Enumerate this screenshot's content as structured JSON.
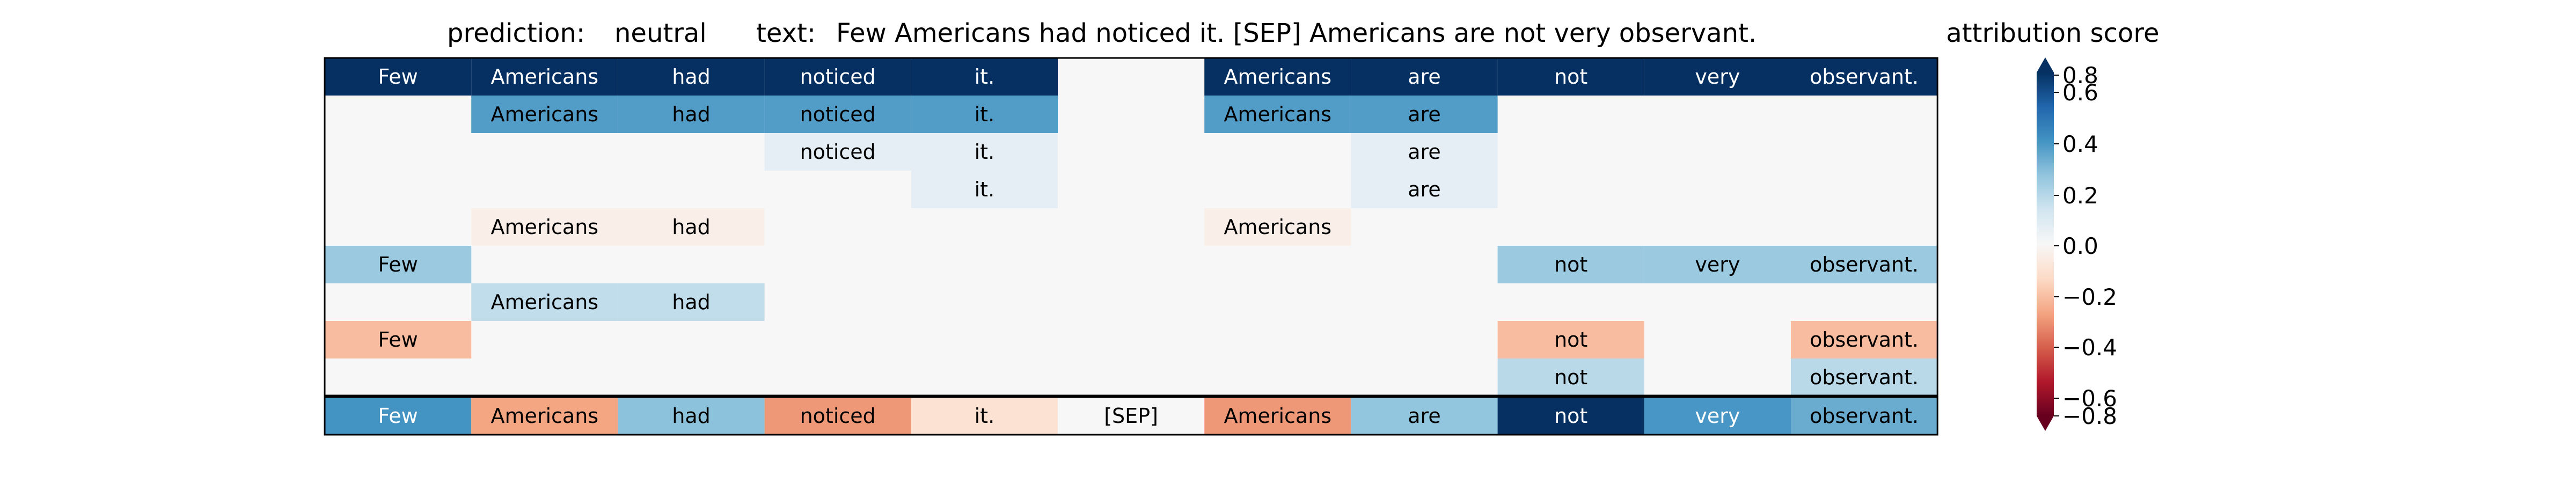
{
  "chart_data": {
    "type": "heatmap",
    "title_prediction_label": "prediction:",
    "title_prediction_value": "neutral",
    "title_text_label": "text:",
    "title_text_value": "Few Americans had noticed it. [SEP] Americans are not very observant.",
    "colorbar_title": "attribution score",
    "colorscale": "RdBu",
    "vmin": -0.8,
    "vmax": 0.8,
    "colorbar_ticks": [
      "0.8",
      "0.6",
      "0.4",
      "0.2",
      "0.0",
      "−0.2",
      "−0.4",
      "−0.6",
      "−0.8"
    ],
    "tokens": [
      "Few",
      "Americans",
      "had",
      "noticed",
      "it.",
      "[SEP]",
      "Americans",
      "are",
      "not",
      "very",
      "observant."
    ],
    "rows": [
      [
        0.95,
        0.95,
        0.95,
        0.95,
        0.95,
        null,
        0.95,
        0.95,
        0.95,
        0.95,
        0.95
      ],
      [
        null,
        0.45,
        0.45,
        0.45,
        0.45,
        null,
        0.45,
        0.45,
        null,
        null,
        null
      ],
      [
        null,
        null,
        null,
        0.08,
        0.08,
        null,
        null,
        0.08,
        null,
        null,
        null
      ],
      [
        null,
        null,
        null,
        null,
        0.08,
        null,
        null,
        0.08,
        null,
        null,
        null
      ],
      [
        null,
        -0.05,
        -0.05,
        null,
        null,
        null,
        -0.05,
        null,
        null,
        null,
        null
      ],
      [
        0.3,
        null,
        null,
        null,
        null,
        null,
        null,
        null,
        0.3,
        0.3,
        0.3
      ],
      [
        null,
        0.2,
        0.2,
        null,
        null,
        null,
        null,
        null,
        null,
        null,
        null
      ],
      [
        -0.25,
        null,
        null,
        null,
        null,
        null,
        null,
        null,
        -0.25,
        null,
        -0.25
      ],
      [
        null,
        null,
        null,
        null,
        null,
        null,
        null,
        null,
        0.22,
        null,
        0.22
      ]
    ],
    "total_row": [
      0.48,
      -0.32,
      0.33,
      -0.35,
      -0.12,
      0.0,
      -0.35,
      0.32,
      0.82,
      0.47,
      0.4
    ],
    "background_value": 0.0
  }
}
